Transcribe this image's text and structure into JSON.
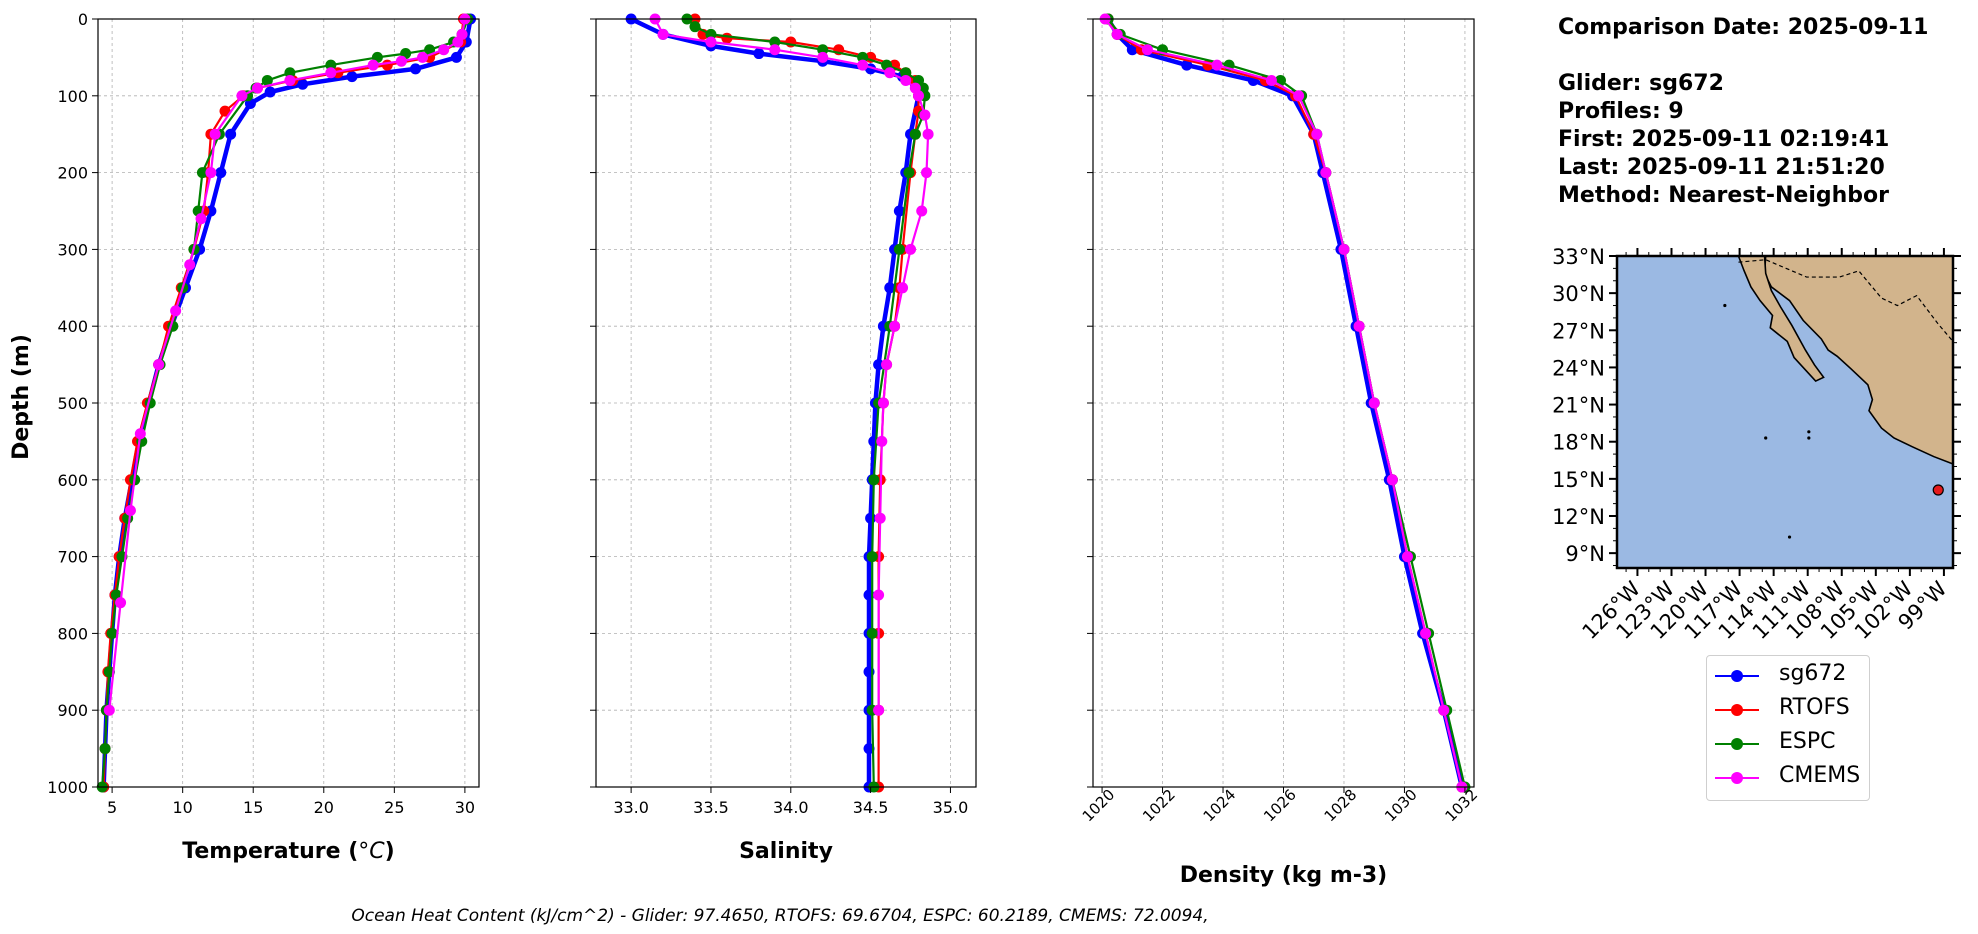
{
  "chart_data": [
    {
      "type": "line",
      "xlabel": "Temperature (°C)",
      "ylabel": "Depth (m)",
      "xlim": [
        4,
        31
      ],
      "ylim": [
        1000,
        0
      ],
      "xticks": [
        5,
        10,
        15,
        20,
        25,
        30
      ],
      "yticks": [
        0,
        100,
        200,
        300,
        400,
        500,
        600,
        700,
        800,
        900,
        1000
      ],
      "grid": true,
      "series": [
        {
          "name": "sg672",
          "color": "#0000ff",
          "depth": [
            0,
            30,
            50,
            65,
            75,
            85,
            95,
            110,
            150,
            200,
            250,
            300,
            350,
            400,
            450,
            500,
            550,
            600,
            650,
            700,
            750,
            800,
            850,
            900,
            950,
            1000
          ],
          "values": [
            30.4,
            30.1,
            29.4,
            26.5,
            22.0,
            18.5,
            16.2,
            14.8,
            13.4,
            12.7,
            12.0,
            11.2,
            10.2,
            9.2,
            8.3,
            7.6,
            6.9,
            6.4,
            5.9,
            5.5,
            5.2,
            5.0,
            4.8,
            4.6,
            4.5,
            4.4
          ]
        },
        {
          "name": "RTOFS",
          "color": "#ff0000",
          "depth": [
            0,
            30,
            50,
            60,
            70,
            80,
            90,
            100,
            120,
            150,
            200,
            250,
            300,
            350,
            400,
            450,
            500,
            550,
            600,
            650,
            700,
            750,
            800,
            850,
            900,
            950,
            1000
          ],
          "values": [
            29.9,
            29.7,
            27.5,
            24.5,
            21.0,
            17.8,
            15.3,
            14.3,
            13.0,
            12.0,
            11.8,
            11.5,
            10.8,
            9.9,
            9.0,
            8.3,
            7.5,
            6.8,
            6.3,
            5.9,
            5.5,
            5.2,
            4.9,
            4.7,
            4.6,
            4.5,
            4.4
          ]
        },
        {
          "name": "ESPC",
          "color": "#008000",
          "depth": [
            0,
            20,
            30,
            40,
            45,
            50,
            60,
            70,
            80,
            90,
            100,
            150,
            200,
            250,
            300,
            350,
            400,
            450,
            500,
            550,
            600,
            650,
            700,
            750,
            800,
            850,
            900,
            950,
            1000
          ],
          "values": [
            30.2,
            29.8,
            29.2,
            27.5,
            25.8,
            23.8,
            20.5,
            17.6,
            16.0,
            15.2,
            14.6,
            12.6,
            11.4,
            11.1,
            10.8,
            10.0,
            9.3,
            8.4,
            7.7,
            7.1,
            6.6,
            6.1,
            5.7,
            5.3,
            5.0,
            4.8,
            4.6,
            4.5,
            4.3
          ]
        },
        {
          "name": "CMEMS",
          "color": "#ff00ff",
          "depth": [
            0,
            20,
            30,
            40,
            50,
            55,
            60,
            70,
            80,
            90,
            100,
            150,
            200,
            260,
            320,
            380,
            450,
            540,
            640,
            760,
            900
          ],
          "values": [
            30.0,
            29.8,
            29.5,
            28.5,
            27.0,
            25.5,
            23.5,
            20.5,
            17.6,
            15.3,
            14.2,
            12.3,
            12.0,
            11.3,
            10.5,
            9.5,
            8.3,
            7.0,
            6.3,
            5.6,
            4.8
          ]
        }
      ]
    },
    {
      "type": "line",
      "xlabel": "Salinity",
      "ylim": [
        1000,
        0
      ],
      "xlim": [
        32.78,
        35.16
      ],
      "xticks": [
        33.0,
        33.5,
        34.0,
        34.5,
        35.0
      ],
      "grid": true,
      "series": [
        {
          "name": "sg672",
          "color": "#0000ff",
          "depth": [
            0,
            20,
            35,
            45,
            55,
            65,
            75,
            85,
            95,
            100,
            150,
            200,
            250,
            300,
            350,
            400,
            450,
            500,
            550,
            600,
            650,
            700,
            750,
            800,
            850,
            900,
            950,
            1000
          ],
          "values": [
            33.0,
            33.2,
            33.5,
            33.8,
            34.2,
            34.5,
            34.7,
            34.78,
            34.82,
            34.8,
            34.75,
            34.72,
            34.68,
            34.65,
            34.62,
            34.58,
            34.55,
            34.53,
            34.52,
            34.51,
            34.5,
            34.49,
            34.49,
            34.49,
            34.49,
            34.49,
            34.49,
            34.49
          ]
        },
        {
          "name": "RTOFS",
          "color": "#ff0000",
          "depth": [
            0,
            20,
            25,
            30,
            40,
            50,
            60,
            70,
            80,
            90,
            100,
            120,
            150,
            200,
            300,
            350,
            400,
            450,
            500,
            600,
            700,
            800,
            900,
            1000
          ],
          "values": [
            33.4,
            33.45,
            33.6,
            34.0,
            34.3,
            34.5,
            34.65,
            34.72,
            34.78,
            34.8,
            34.8,
            34.8,
            34.78,
            34.75,
            34.7,
            34.68,
            34.65,
            34.6,
            34.58,
            34.56,
            34.55,
            34.55,
            34.55,
            34.55
          ]
        },
        {
          "name": "ESPC",
          "color": "#008000",
          "depth": [
            0,
            10,
            20,
            30,
            40,
            50,
            60,
            70,
            80,
            90,
            100,
            125,
            150,
            200,
            300,
            400,
            500,
            600,
            700,
            800,
            900,
            1000
          ],
          "values": [
            33.35,
            33.4,
            33.5,
            33.9,
            34.2,
            34.45,
            34.6,
            34.72,
            34.8,
            34.83,
            34.84,
            34.83,
            34.78,
            34.74,
            34.68,
            34.62,
            34.55,
            34.52,
            34.51,
            34.51,
            34.51,
            34.52
          ]
        },
        {
          "name": "CMEMS",
          "color": "#ff00ff",
          "depth": [
            0,
            20,
            30,
            40,
            50,
            60,
            70,
            80,
            90,
            100,
            125,
            150,
            200,
            250,
            300,
            350,
            400,
            450,
            500,
            550,
            650,
            750,
            900
          ],
          "values": [
            33.15,
            33.2,
            33.5,
            33.9,
            34.2,
            34.45,
            34.62,
            34.72,
            34.78,
            34.8,
            34.84,
            34.86,
            34.85,
            34.82,
            34.75,
            34.7,
            34.65,
            34.6,
            34.58,
            34.57,
            34.56,
            34.55,
            34.55
          ]
        }
      ]
    },
    {
      "type": "line",
      "xlabel": "Density (kg m-3)",
      "ylim": [
        1000,
        0
      ],
      "xlim": [
        1019.7,
        1032.3
      ],
      "xticks": [
        1020,
        1022,
        1024,
        1026,
        1028,
        1030,
        1032
      ],
      "grid": true,
      "series": [
        {
          "name": "sg672",
          "color": "#0000ff",
          "depth": [
            0,
            20,
            40,
            60,
            80,
            100,
            150,
            200,
            300,
            400,
            500,
            600,
            700,
            800,
            900,
            1000
          ],
          "values": [
            1020.2,
            1020.5,
            1021.0,
            1022.8,
            1025.0,
            1026.3,
            1027.0,
            1027.3,
            1027.9,
            1028.4,
            1028.9,
            1029.5,
            1030.0,
            1030.6,
            1031.3,
            1031.9
          ]
        },
        {
          "name": "RTOFS",
          "color": "#ff0000",
          "depth": [
            0,
            20,
            40,
            60,
            80,
            100,
            150,
            200,
            300,
            400,
            500,
            600,
            700,
            800,
            900,
            1000
          ],
          "values": [
            1020.2,
            1020.5,
            1021.3,
            1023.5,
            1025.4,
            1026.4,
            1027.0,
            1027.4,
            1028.0,
            1028.5,
            1029.0,
            1029.6,
            1030.1,
            1030.7,
            1031.3,
            1031.9
          ]
        },
        {
          "name": "ESPC",
          "color": "#008000",
          "depth": [
            0,
            20,
            40,
            60,
            80,
            100,
            150,
            200,
            300,
            400,
            500,
            600,
            700,
            800,
            900,
            1000
          ],
          "values": [
            1020.2,
            1020.6,
            1022.0,
            1024.2,
            1025.9,
            1026.6,
            1027.1,
            1027.4,
            1028.0,
            1028.5,
            1029.0,
            1029.6,
            1030.2,
            1030.8,
            1031.4,
            1032.0
          ]
        },
        {
          "name": "CMEMS",
          "color": "#ff00ff",
          "depth": [
            0,
            20,
            40,
            60,
            80,
            100,
            150,
            200,
            300,
            400,
            500,
            600,
            700,
            800,
            900,
            1000
          ],
          "values": [
            1020.1,
            1020.5,
            1021.5,
            1023.8,
            1025.6,
            1026.5,
            1027.1,
            1027.4,
            1028.0,
            1028.5,
            1029.0,
            1029.6,
            1030.1,
            1030.7,
            1031.3,
            1031.9
          ]
        }
      ]
    }
  ],
  "yticklabels": [
    "0",
    "100",
    "200",
    "300",
    "400",
    "500",
    "600",
    "700",
    "800",
    "900",
    "1000"
  ],
  "temp_label_prefix": "Temperature (",
  "temp_label_unit": "°C",
  "temp_label_suffix": ")",
  "info": {
    "comparison_date": "Comparison Date: 2025-09-11",
    "glider": "Glider: sg672",
    "profiles": "Profiles: 9",
    "first": "First: 2025-09-11 02:19:41",
    "last": "Last: 2025-09-11 21:51:20",
    "method": "Method: Nearest-Neighbor"
  },
  "map": {
    "lat_labels": [
      "33°N",
      "30°N",
      "27°N",
      "24°N",
      "21°N",
      "18°N",
      "15°N",
      "12°N",
      "9°N"
    ],
    "lon_labels": [
      "126°W",
      "123°W",
      "120°W",
      "117°W",
      "114°W",
      "111°W",
      "108°W",
      "105°W",
      "102°W",
      "99°W"
    ],
    "glider_position": {
      "lat": 14.1,
      "lon": -99.5
    },
    "ocean_color": "#9bb9e3",
    "land_color": "#d2b48c"
  },
  "legend": [
    {
      "label": "sg672",
      "color": "#0000ff"
    },
    {
      "label": "RTOFS",
      "color": "#ff0000"
    },
    {
      "label": "ESPC",
      "color": "#008000"
    },
    {
      "label": "CMEMS",
      "color": "#ff00ff"
    }
  ],
  "caption": "Ocean Heat Content (kJ/cm^2) - Glider: 97.4650,  RTOFS: 69.6704,  ESPC: 60.2189,  CMEMS: 72.0094,"
}
